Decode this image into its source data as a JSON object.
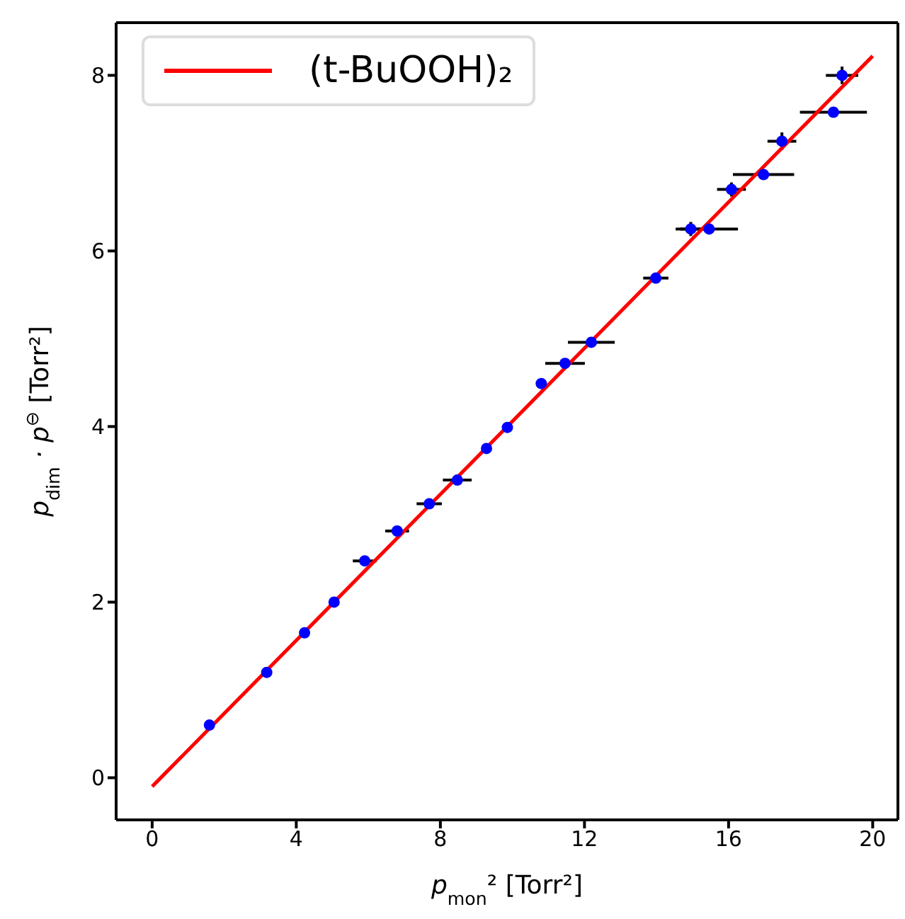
{
  "chart_data": {
    "type": "scatter",
    "xlabel": "p$_{mon}$² [Torr²]",
    "ylabel": "p$_{dim}$ · p$^{⊖}$ [Torr²]",
    "x": [
      1.59,
      3.18,
      4.23,
      5.05,
      5.9,
      6.8,
      7.69,
      8.47,
      9.28,
      9.86,
      10.8,
      11.46,
      12.19,
      13.98,
      14.95,
      15.46,
      16.08,
      16.97,
      17.48,
      18.91,
      19.15
    ],
    "series": [
      {
        "color": "#0000ff",
        "marker": "circle",
        "values": [
          0.6,
          1.2,
          1.65,
          2.0,
          2.47,
          2.81,
          3.12,
          3.39,
          3.75,
          3.99,
          4.49,
          4.72,
          4.96,
          5.69,
          6.25,
          6.25,
          6.7,
          6.87,
          7.25,
          7.58,
          8.0
        ],
        "xerrors": [
          null,
          null,
          null,
          null,
          0.33,
          0.33,
          0.35,
          0.4,
          null,
          null,
          null,
          0.55,
          0.65,
          0.35,
          0.42,
          0.8,
          0.4,
          0.85,
          0.4,
          0.93,
          0.45
        ],
        "errors": [
          null,
          null,
          null,
          null,
          null,
          null,
          null,
          null,
          null,
          null,
          null,
          null,
          null,
          null,
          0.08,
          null,
          0.08,
          null,
          0.1,
          null,
          0.1
        ]
      },
      {
        "type": "line",
        "marker": "none",
        "name": "(t-BuOOH)₂",
        "color": "#ff0000",
        "x": [
          0,
          20
        ],
        "values": [
          -0.1,
          8.22
        ]
      }
    ],
    "xlim": [
      -1,
      20.7
    ],
    "ylim": [
      -0.48,
      8.6
    ],
    "xticks": [
      0,
      4,
      8,
      12,
      16,
      20
    ],
    "yticks": [
      0,
      2,
      4,
      6,
      8
    ],
    "grid": false,
    "legend": "top left",
    "line_style": "solid"
  }
}
